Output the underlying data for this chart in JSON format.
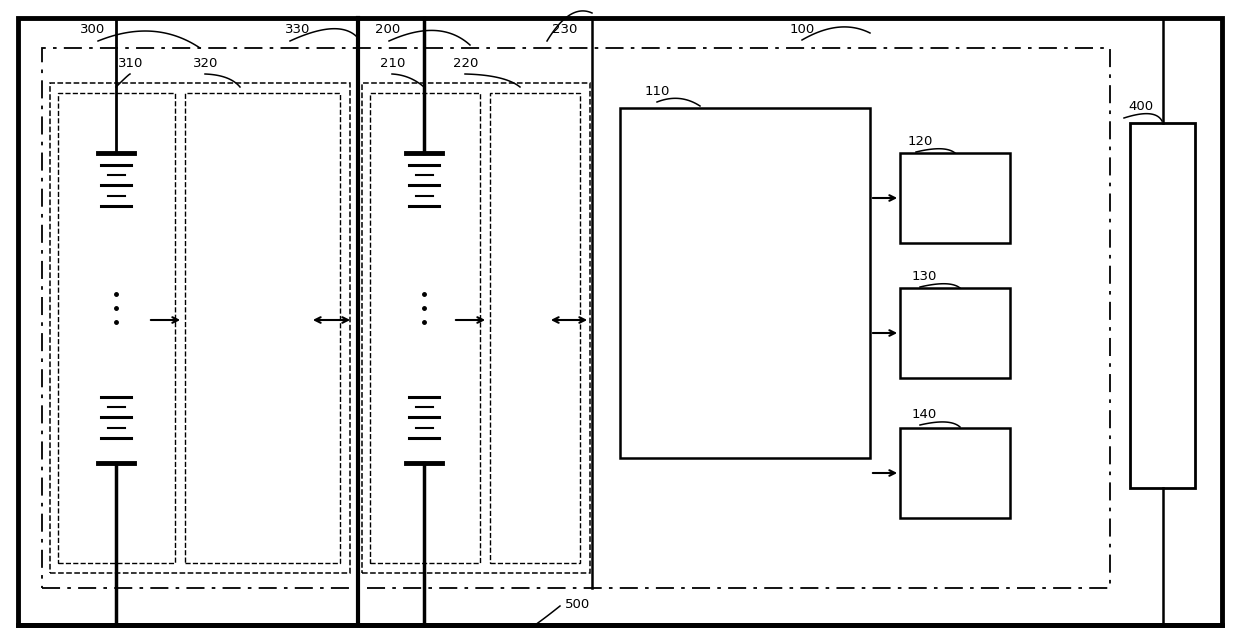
{
  "bg_color": "#ffffff",
  "lc": "#000000",
  "fig_width": 12.4,
  "fig_height": 6.43,
  "dpi": 100
}
